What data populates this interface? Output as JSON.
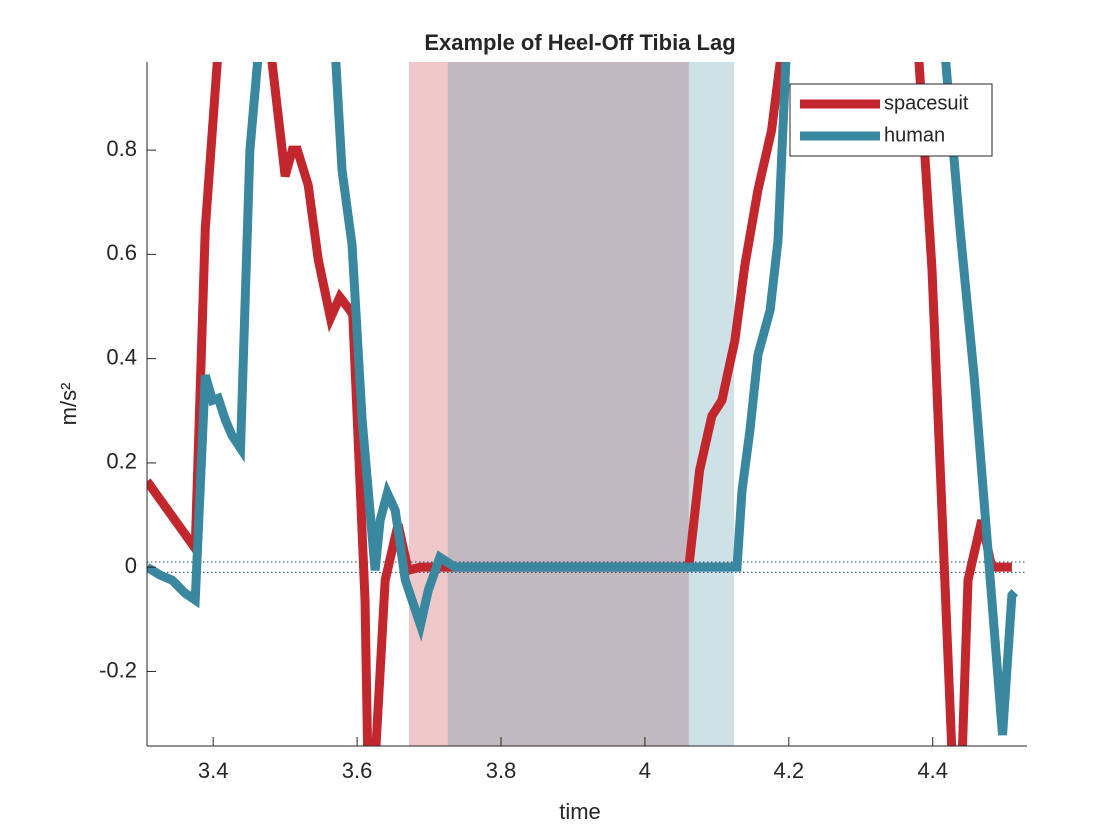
{
  "chart_data": {
    "type": "line",
    "title": "Example of Heel-Off Tibia Lag",
    "xlabel": "time",
    "ylabel": "m/s²",
    "xlim": [
      3.308,
      4.531
    ],
    "ylim": [
      -0.343,
      0.969
    ],
    "xticks": [
      3.4,
      3.6,
      3.8,
      4,
      4.2,
      4.4
    ],
    "yticks": [
      -0.2,
      0,
      0.2,
      0.4,
      0.6,
      0.8
    ],
    "reference_lines": [
      0.01,
      -0.01
    ],
    "reference_color": "#1f3f6e",
    "shaded_regions": [
      {
        "x": [
          3.672,
          4.061
        ],
        "color": "#c1272d",
        "opacity": 0.25
      },
      {
        "x": [
          3.726,
          4.124
        ],
        "color": "#3a87a0",
        "opacity": 0.25
      }
    ],
    "legend": "upper right",
    "series": [
      {
        "name": "spacesuit",
        "color": "#c1272d",
        "x": [
          3.308,
          3.375,
          3.389,
          3.412,
          3.475,
          3.5,
          3.51,
          3.517,
          3.532,
          3.546,
          3.563,
          3.576,
          3.59,
          3.594,
          3.611,
          3.615,
          3.624,
          3.639,
          3.657,
          3.671,
          3.688,
          4.061,
          4.076,
          4.093,
          4.107,
          4.125,
          4.139,
          4.157,
          4.176,
          4.2,
          4.375,
          4.399,
          4.428,
          4.44,
          4.449,
          4.468,
          4.482,
          4.51
        ],
        "values": [
          0.165,
          0.036,
          0.65,
          1.09,
          1.05,
          0.75,
          0.8,
          0.8,
          0.733,
          0.59,
          0.478,
          0.518,
          0.493,
          0.484,
          -0.063,
          -0.38,
          -0.4,
          -0.025,
          0.082,
          -0.006,
          0,
          0,
          0.186,
          0.29,
          0.32,
          0.435,
          0.58,
          0.723,
          0.838,
          1.1,
          1.1,
          0.57,
          -0.4,
          -0.4,
          -0.025,
          0.09,
          0,
          0
        ]
      },
      {
        "name": "human",
        "color": "#3a87a0",
        "x": [
          3.308,
          3.326,
          3.343,
          3.361,
          3.375,
          3.389,
          3.399,
          3.407,
          3.417,
          3.426,
          3.438,
          3.451,
          3.47,
          3.565,
          3.579,
          3.593,
          3.607,
          3.625,
          3.632,
          3.642,
          3.653,
          3.667,
          3.688,
          3.699,
          3.715,
          3.736,
          4.128,
          4.135,
          4.146,
          4.157,
          4.174,
          4.185,
          4.2,
          4.41,
          4.438,
          4.458,
          4.497,
          4.51,
          4.514
        ],
        "values": [
          0,
          -0.015,
          -0.025,
          -0.05,
          -0.063,
          0.368,
          0.32,
          0.324,
          0.282,
          0.253,
          0.228,
          0.8,
          1.1,
          1.1,
          0.762,
          0.618,
          0.282,
          -0.006,
          0.09,
          0.142,
          0.109,
          -0.025,
          -0.111,
          -0.044,
          0.019,
          0,
          0,
          0.148,
          0.263,
          0.407,
          0.493,
          0.627,
          1.1,
          1.1,
          0.647,
          0.359,
          -0.322,
          -0.054,
          -0.048
        ]
      }
    ]
  }
}
